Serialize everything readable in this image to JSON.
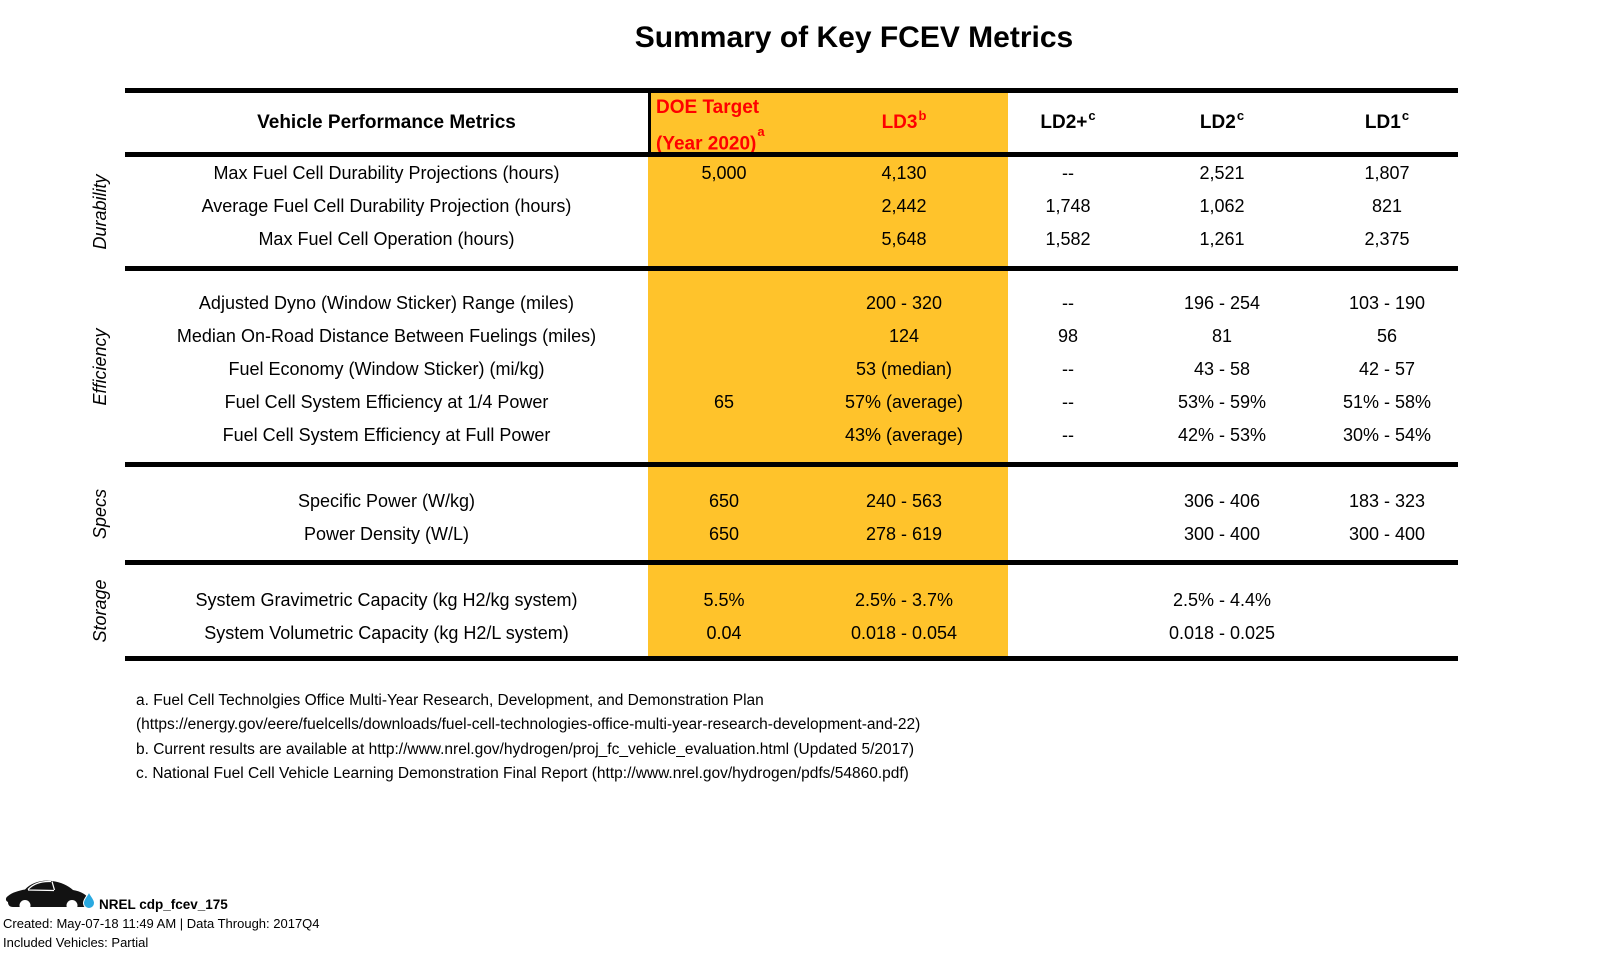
{
  "page": {
    "title": "Summary of Key FCEV Metrics",
    "colors": {
      "highlight_yellow": "#FFC32B",
      "header_red": "#FF0000",
      "droplet_blue": "#2AA9E0",
      "rule_black": "#000000"
    }
  },
  "chart_data": {
    "type": "table",
    "title": "Summary of Key FCEV Metrics",
    "highlighted_columns": [
      "DOE Target (Year 2020)",
      "LD3"
    ],
    "columns": [
      {
        "id": "metric",
        "label": "Vehicle Performance Metrics",
        "sup": ""
      },
      {
        "id": "doe",
        "label": "DOE Target",
        "label2": "(Year 2020)",
        "sup": "a"
      },
      {
        "id": "ld3",
        "label": "LD3",
        "sup": "b"
      },
      {
        "id": "ld2plus",
        "label": "LD2+",
        "sup": "c"
      },
      {
        "id": "ld2",
        "label": "LD2",
        "sup": "c"
      },
      {
        "id": "ld1",
        "label": "LD1",
        "sup": "c"
      }
    ],
    "sections": [
      {
        "id": "durability",
        "label": "Durability",
        "rows": [
          {
            "cells": [
              "Max Fuel Cell Durability Projections (hours)",
              "5,000",
              "4,130",
              "--",
              "2,521",
              "1,807"
            ]
          },
          {
            "cells": [
              "Average Fuel Cell Durability Projection (hours)",
              "",
              "2,442",
              "1,748",
              "1,062",
              "821"
            ]
          },
          {
            "cells": [
              "Max Fuel Cell Operation (hours)",
              "",
              "5,648",
              "1,582",
              "1,261",
              "2,375"
            ]
          }
        ]
      },
      {
        "id": "efficiency",
        "label": "Efficiency",
        "rows": [
          {
            "cells": [
              "Adjusted Dyno (Window Sticker) Range (miles)",
              "",
              "200 - 320",
              "--",
              "196 - 254",
              "103 - 190"
            ]
          },
          {
            "cells": [
              "Median On-Road Distance Between Fuelings (miles)",
              "",
              "124",
              "98",
              "81",
              "56"
            ]
          },
          {
            "cells": [
              "Fuel Economy (Window Sticker) (mi/kg)",
              "",
              "53 (median)",
              "--",
              "43 - 58",
              "42 - 57"
            ]
          },
          {
            "cells": [
              "Fuel Cell System Efficiency at 1/4 Power",
              "65",
              "57% (average)",
              "--",
              "53% - 59%",
              "51% - 58%"
            ]
          },
          {
            "cells": [
              "Fuel Cell System Efficiency at Full Power",
              "",
              "43% (average)",
              "--",
              "42% - 53%",
              "30% - 54%"
            ]
          }
        ]
      },
      {
        "id": "specs",
        "label": "Specs",
        "rows": [
          {
            "cells": [
              "Specific Power (W/kg)",
              "650",
              "240 - 563",
              "",
              "306 - 406",
              "183 - 323"
            ]
          },
          {
            "cells": [
              "Power Density (W/L)",
              "650",
              "278 - 619",
              "",
              "300 - 400",
              "300 - 400"
            ]
          }
        ]
      },
      {
        "id": "storage",
        "label": "Storage",
        "rows": [
          {
            "cells": [
              "System Gravimetric Capacity (kg H2/kg system)",
              "5.5%",
              "2.5% - 3.7%",
              "",
              "2.5% - 4.4%",
              ""
            ]
          },
          {
            "cells": [
              "System Volumetric Capacity (kg H2/L system)",
              "0.04",
              "0.018 - 0.054",
              "",
              "0.018 - 0.025",
              ""
            ]
          }
        ]
      }
    ]
  },
  "footnotes": {
    "lines": [
      "a. Fuel Cell Technolgies Office Multi-Year Research, Development, and Demonstration Plan",
      "(https://energy.gov/eere/fuelcells/downloads/fuel-cell-technologies-office-multi-year-research-development-and-22)",
      "b. Current results are available at http://www.nrel.gov/hydrogen/proj_fc_vehicle_evaluation.html (Updated 5/2017)",
      "c. National Fuel Cell Vehicle Learning Demonstration Final Report (http://www.nrel.gov/hydrogen/pdfs/54860.pdf)"
    ]
  },
  "footer": {
    "product_id": "NREL cdp_fcev_175",
    "created_line": "Created: May-07-18 11:49 AM | Data Through: 2017Q4",
    "included_line": "Included Vehicles: Partial"
  }
}
